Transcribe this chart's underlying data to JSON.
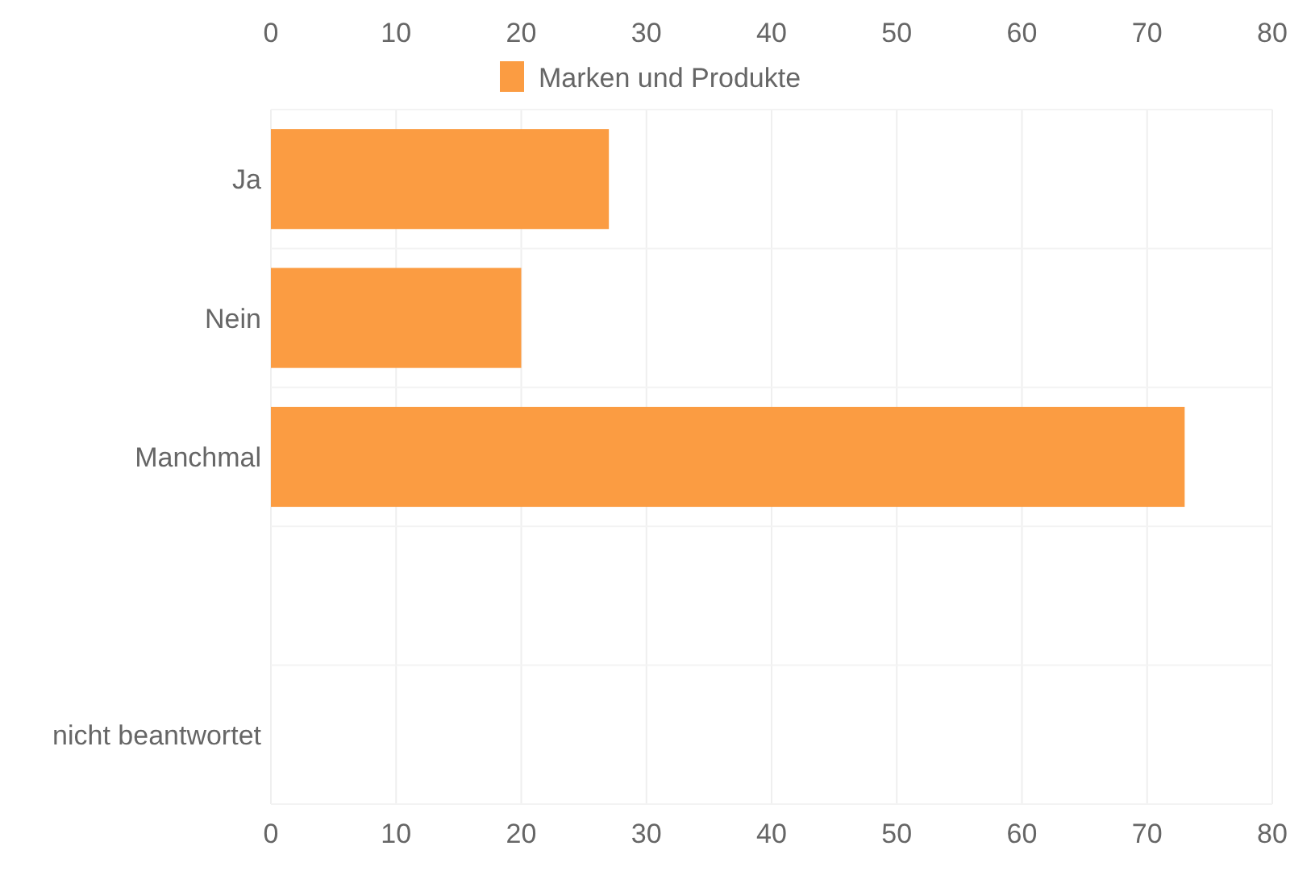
{
  "chart_data": {
    "type": "bar",
    "orientation": "horizontal",
    "categories": [
      "Ja",
      "Nein",
      "Manchmal",
      null,
      "nicht beantwortet"
    ],
    "series": [
      {
        "name": "Marken und Produkte",
        "color": "#fb9c42",
        "values": [
          27,
          20,
          73,
          null,
          0
        ]
      }
    ],
    "xlim": [
      0,
      80
    ],
    "xticks": [
      0,
      10,
      20,
      30,
      40,
      50,
      60,
      70,
      80
    ],
    "x2lim": [
      0,
      80
    ],
    "x2ticks": [
      0,
      10,
      20,
      30,
      40,
      50,
      60,
      70,
      80
    ],
    "grid": true,
    "legend": "top"
  }
}
